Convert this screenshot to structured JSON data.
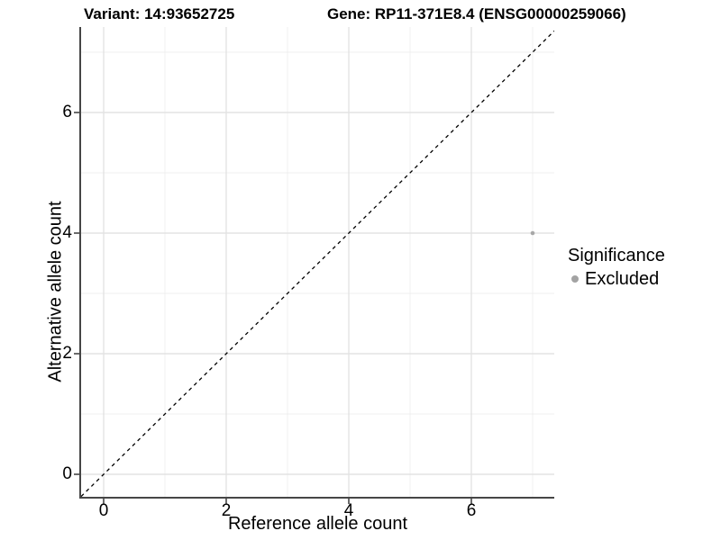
{
  "title": {
    "variant": "Variant: 14:93652725",
    "gene": "Gene: RP11-371E8.4 (ENSG00000259066)"
  },
  "chart_data": {
    "type": "scatter",
    "xlabel": "Reference allele count",
    "ylabel": "Alternative allele count",
    "x_ticks": [
      0,
      2,
      4,
      6
    ],
    "y_ticks": [
      0,
      2,
      4,
      6
    ],
    "x_minor_ticks": [
      1,
      3,
      5,
      7
    ],
    "y_minor_ticks": [
      1,
      3,
      5,
      7
    ],
    "xlim": [
      -0.37,
      7.35
    ],
    "ylim": [
      -0.37,
      7.42
    ],
    "grid": "on",
    "points": [
      {
        "x": 7,
        "y": 4,
        "series": "Excluded"
      }
    ],
    "reference_line": {
      "type": "identity",
      "style": "dashed"
    },
    "legend": {
      "title": "Significance",
      "position": "right",
      "items": [
        {
          "label": "Excluded",
          "color": "#a3a3a3"
        }
      ]
    }
  },
  "colors": {
    "point": "#a8a8a8",
    "grid_major": "#e3e3e3",
    "grid_minor": "#efefef",
    "axis_line": "#464646",
    "reference_line": "#000000",
    "text": "#000000",
    "background": "#ffffff"
  }
}
